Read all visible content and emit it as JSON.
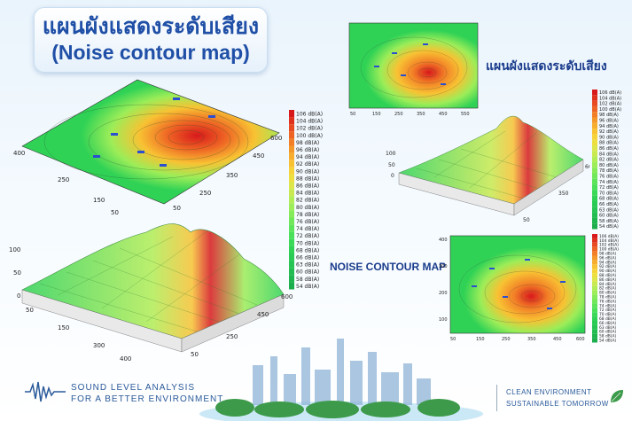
{
  "header": {
    "title_thai": "แผนผังแสดงระดับเสียง",
    "title_english": "(Noise contour map)"
  },
  "right_heading_thai": "แผนผังแสดงระดับเสียง",
  "center_heading": "NOISE CONTOUR MAP",
  "footer": {
    "left_line1": "SOUND LEVEL ANALYSIS",
    "left_line2": "FOR A BETTER ENVIRONMENT",
    "right_line1": "CLEAN ENVIRONMENT",
    "right_line2": "SUSTAINABLE TOMORROW"
  },
  "legend": {
    "labels": [
      "106 dB(A)",
      "104 dB(A)",
      "102 dB(A)",
      "100 dB(A)",
      "98 dB(A)",
      "96 dB(A)",
      "94 dB(A)",
      "92 dB(A)",
      "90 dB(A)",
      "88 dB(A)",
      "86 dB(A)",
      "84 dB(A)",
      "82 dB(A)",
      "80 dB(A)",
      "78 dB(A)",
      "76 dB(A)",
      "74 dB(A)",
      "72 dB(A)",
      "70 dB(A)",
      "68 dB(A)",
      "66 dB(A)",
      "63 dB(A)",
      "60 dB(A)",
      "58 dB(A)",
      "54 dB(A)"
    ],
    "colors": [
      "#d7191c",
      "#e0301e",
      "#e84a22",
      "#ee6424",
      "#f27f27",
      "#f5982a",
      "#f7ae2e",
      "#f8c233",
      "#f7d33a",
      "#eedf41",
      "#dde64a",
      "#c8ea50",
      "#b2ed55",
      "#9ced58",
      "#86eb59",
      "#70e85a",
      "#5ce55b",
      "#4ae05a",
      "#3bd958",
      "#30d256",
      "#2acb54",
      "#26c452",
      "#22bd50",
      "#1fb54e",
      "#1cad4c"
    ]
  },
  "axes": {
    "x_ticks": [
      "50",
      "100",
      "150",
      "200",
      "250",
      "300",
      "350",
      "400",
      "450",
      "500",
      "550",
      "600"
    ],
    "y_ticks": [
      "50",
      "150",
      "250",
      "400"
    ],
    "z_ticks": [
      "0",
      "50",
      "100"
    ],
    "surface_y_ticks": [
      "0",
      "50",
      "100",
      "150",
      "200",
      "250",
      "300",
      "350",
      "400"
    ]
  },
  "colors": {
    "brand_blue": "#1f4fa6",
    "heading_blue": "#1a3c8c",
    "hot": "#d7191c",
    "mid": "#f7d33a",
    "cool": "#1cad4c"
  },
  "icons": [
    "waveform-icon",
    "leaf-icon"
  ]
}
